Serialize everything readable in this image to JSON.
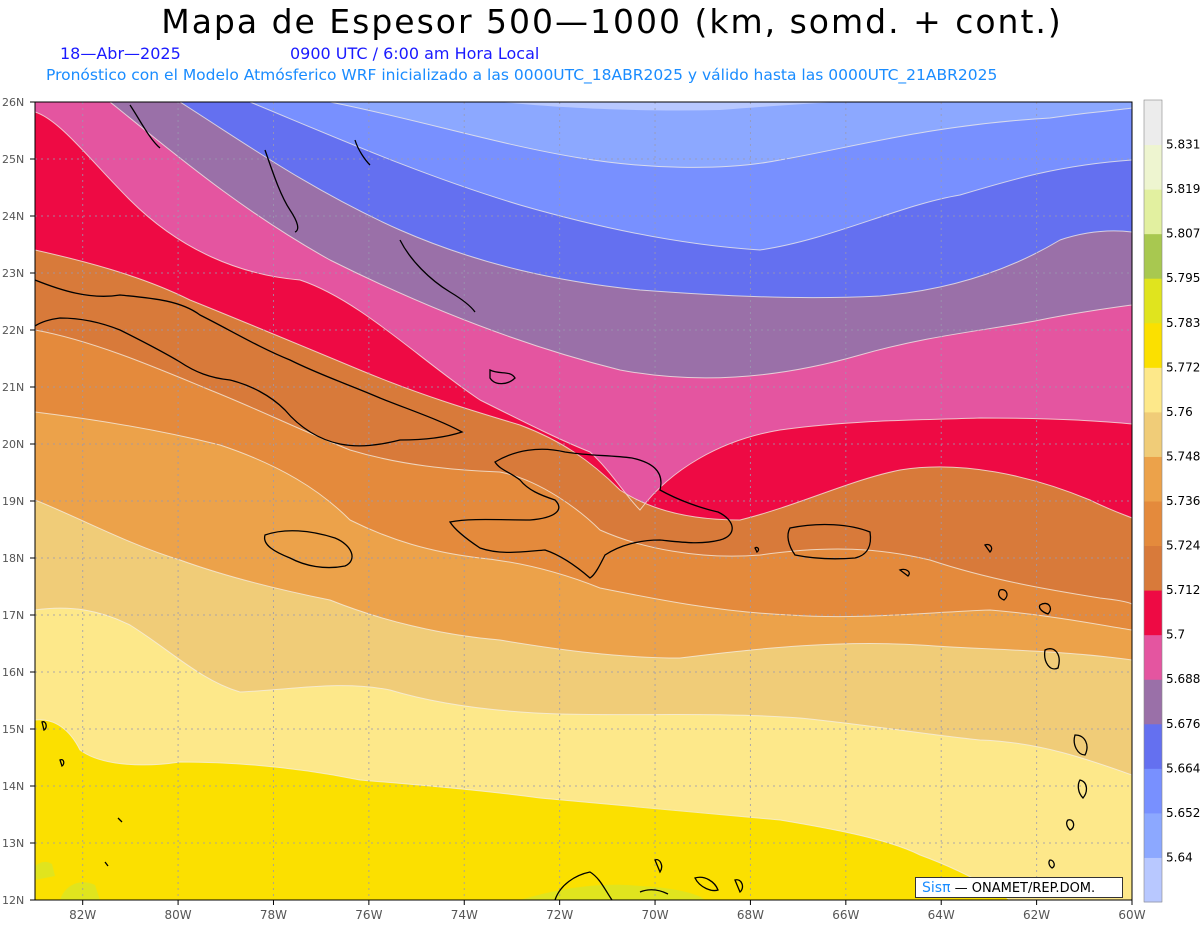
{
  "title": "Mapa de Espesor 500—1000 (km, somd. + cont.)",
  "date": "18—Abr—2025",
  "valid_time": "0900 UTC / 6:00 am Hora Local",
  "subtitle": "Pronóstico con el Modelo Atmósferico WRF inicializado a las 0000UTC_18ABR2025 y válido hasta las  0000UTC_21ABR2025",
  "credit": {
    "brand": "Sisπ",
    "org": "— ONAMET/REP.DOM."
  },
  "map": {
    "lon_range": [
      -83,
      -60
    ],
    "lat_range": [
      12,
      26
    ],
    "lon_labels": [
      "82W",
      "80W",
      "78W",
      "76W",
      "74W",
      "72W",
      "70W",
      "68W",
      "66W",
      "64W",
      "62W",
      "60W"
    ],
    "lat_labels": [
      "12N",
      "13N",
      "14N",
      "15N",
      "16N",
      "17N",
      "18N",
      "19N",
      "20N",
      "21N",
      "22N",
      "23N",
      "24N",
      "25N",
      "26N"
    ]
  },
  "colorbar": {
    "labels": [
      "5.64",
      "5.652",
      "5.664",
      "5.676",
      "5.688",
      "5.7",
      "5.712",
      "5.724",
      "5.736",
      "5.748",
      "5.76",
      "5.772",
      "5.783",
      "5.795",
      "5.807",
      "5.819",
      "5.831"
    ],
    "colors": [
      "#b8c8ff",
      "#8ca8ff",
      "#7890ff",
      "#6470f0",
      "#9a70a8",
      "#e455a0",
      "#ee0a44",
      "#d87a3a",
      "#e48a3c",
      "#eca24a",
      "#f0cc78",
      "#fde88a",
      "#fbe000",
      "#e0e41e",
      "#a8c850",
      "#e2f0a0",
      "#eef5d0",
      "#ececec"
    ]
  }
}
